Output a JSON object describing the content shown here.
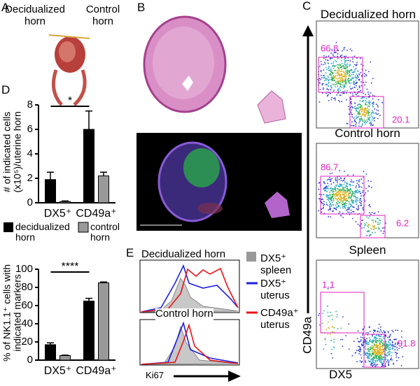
{
  "panel_labels": [
    "A",
    "B",
    "C",
    "D",
    "E"
  ],
  "panel_a": {
    "labels": [
      "Decidualized horn",
      "Control horn"
    ]
  },
  "panel_c": {
    "plots": [
      {
        "title": "Decidualized horn",
        "gates": [
          66.8,
          20.1
        ]
      },
      {
        "title": "Control horn",
        "gates": [
          86.7,
          6.2
        ]
      },
      {
        "title": "Spleen",
        "gates": [
          1.1,
          91.8
        ]
      }
    ],
    "y_label": "CD49a",
    "x_label": "DX5"
  },
  "chart_data": [
    {
      "type": "bar",
      "y_label": "# of indicated cells (x10⁵)/uterine horn",
      "categories": [
        "DX5⁺",
        "CD49a⁺"
      ],
      "ylim": [
        0,
        8
      ],
      "yticks": [
        0,
        2,
        4,
        6,
        8
      ],
      "series": [
        {
          "name": "decidualized horn",
          "color": "#000000",
          "values": [
            1.9,
            6.0
          ],
          "errors": [
            0.6,
            1.5
          ]
        },
        {
          "name": "control horn",
          "color": "#999999",
          "values": [
            0.1,
            2.2
          ],
          "errors": [
            0.05,
            0.3
          ]
        }
      ],
      "annotation": "*"
    },
    {
      "type": "bar",
      "y_label": "% of NK1.1⁺ cells with indicated markers",
      "categories": [
        "DX5⁺",
        "CD49a⁺"
      ],
      "ylim": [
        0,
        100
      ],
      "yticks": [
        0,
        20,
        40,
        60,
        80,
        100
      ],
      "series": [
        {
          "color": "#000000",
          "values": [
            17,
            65
          ],
          "errors": [
            2,
            3
          ]
        },
        {
          "color": "#999999",
          "values": [
            5,
            85
          ],
          "errors": [
            0.5,
            1
          ]
        }
      ],
      "annotation": "****"
    }
  ],
  "panel_e": {
    "titles": [
      "Decidualized horn",
      "Control horn"
    ],
    "legend": [
      "DX5⁺ spleen",
      "DX5⁺ uterus",
      "CD49a⁺ uterus"
    ],
    "x_label": "Ki67"
  }
}
